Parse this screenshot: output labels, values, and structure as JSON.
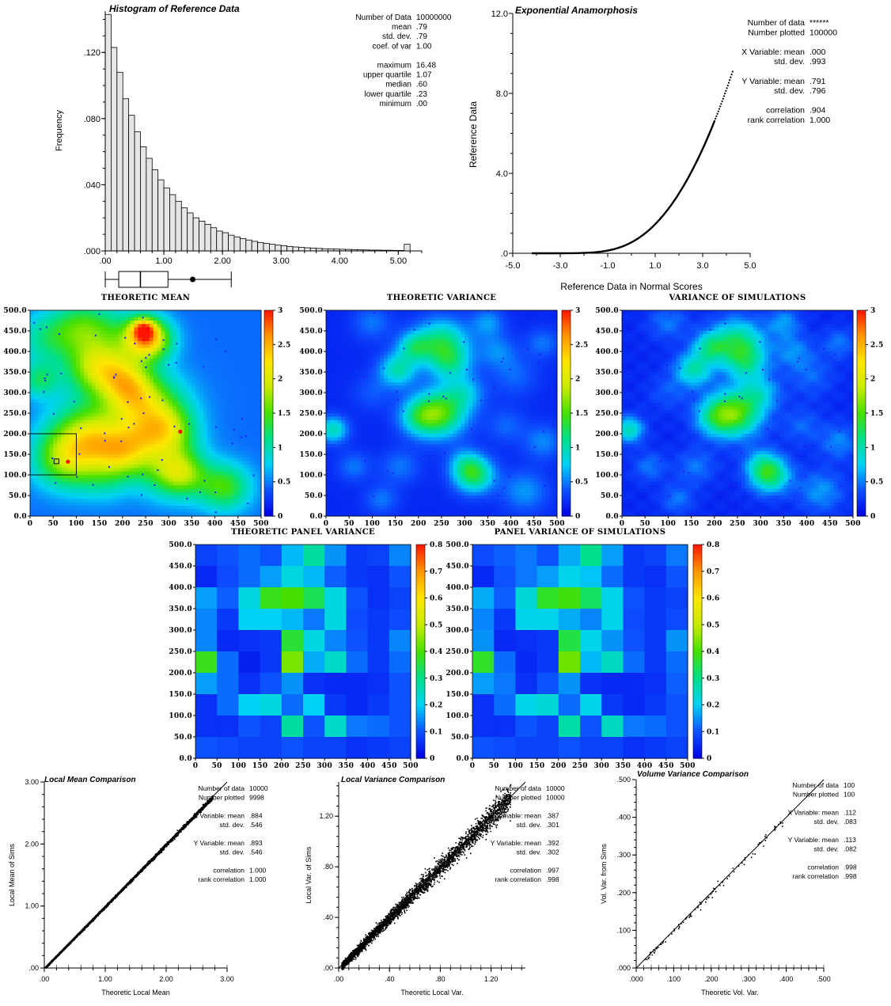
{
  "palette": {
    "stops": [
      "#0000e6",
      "#0d52ff",
      "#00d2f5",
      "#00e08a",
      "#46e000",
      "#c8ec00",
      "#ffe600",
      "#ff9600",
      "#ff1400"
    ],
    "histogram_fill": "#e6e6e6",
    "axis": "#000000",
    "marker_red": "#ff0000",
    "marker_blue": "#1e1eff"
  },
  "chart_data": [
    {
      "id": "histogram",
      "type": "bar",
      "title": "Histogram of Reference Data",
      "xlabel": "",
      "ylabel": "Frequency",
      "xlim": [
        0,
        5.4
      ],
      "ylim": [
        0,
        0.145
      ],
      "bin_width": 0.1,
      "values": [
        0.143,
        0.123,
        0.108,
        0.092,
        0.082,
        0.072,
        0.063,
        0.056,
        0.049,
        0.043,
        0.038,
        0.034,
        0.03,
        0.026,
        0.023,
        0.02,
        0.018,
        0.016,
        0.014,
        0.012,
        0.011,
        0.0095,
        0.0085,
        0.0075,
        0.0066,
        0.0058,
        0.0051,
        0.0045,
        0.004,
        0.0035,
        0.0031,
        0.0027,
        0.0024,
        0.0021,
        0.0019,
        0.0017,
        0.0015,
        0.0013,
        0.0012,
        0.0011,
        0.001,
        0.0009,
        0.0008,
        0.0007,
        0.0006,
        0.0005,
        0.0005,
        0.0004,
        0.0004,
        0.0003,
        0.0003,
        0.004
      ],
      "xticks": [
        0,
        1,
        2,
        3,
        4,
        5
      ],
      "xtick_labels": [
        ".00",
        "1.00",
        "2.00",
        "3.00",
        "4.00",
        "5.00"
      ],
      "yticks": [
        0,
        0.04,
        0.08,
        0.12
      ],
      "ytick_labels": [
        ".000",
        ".040",
        ".080",
        ".120"
      ],
      "boxplot": {
        "min": 0,
        "lower_quartile": 0.23,
        "median": 0.6,
        "upper_quartile": 1.07,
        "whisker_max": 2.15,
        "mean": 0.79
      },
      "stats": [
        [
          "Number of Data",
          "10000000"
        ],
        [
          "mean",
          ".79"
        ],
        [
          "std. dev.",
          ".79"
        ],
        [
          "coef. of var",
          "1.00"
        ],
        [
          "",
          ""
        ],
        [
          "maximum",
          "16.48"
        ],
        [
          "upper quartile",
          "1.07"
        ],
        [
          "median",
          ".60"
        ],
        [
          "lower quartile",
          ".23"
        ],
        [
          "minimum",
          ".00"
        ]
      ]
    },
    {
      "id": "anamorphosis",
      "type": "scatter",
      "title": "Exponential Anamorphosis",
      "xlabel": "Reference Data in Normal Scores",
      "ylabel": "Reference Data",
      "xlim": [
        -5,
        5
      ],
      "ylim": [
        0,
        12
      ],
      "xticks": [
        -5,
        -3,
        -1,
        1,
        3,
        5
      ],
      "xtick_labels": [
        "-5.0",
        "-3.0",
        "-1.0",
        "1.0",
        "3.0",
        "5.0"
      ],
      "yticks": [
        0,
        4,
        8,
        12
      ],
      "ytick_labels": [
        ".0",
        "4.0",
        "8.0",
        "12.0"
      ],
      "curve": "y = -ln(1 - Phi(x)) * 0.791",
      "x_range": [
        -4.2,
        4.3
      ],
      "stats": [
        [
          "Number of data",
          "******"
        ],
        [
          "Number plotted",
          "100000"
        ],
        [
          "",
          ""
        ],
        [
          "X Variable: mean",
          ".000"
        ],
        [
          "std. dev.",
          ".993"
        ],
        [
          "",
          ""
        ],
        [
          "Y Variable: mean",
          ".791"
        ],
        [
          "std. dev.",
          ".796"
        ],
        [
          "",
          ""
        ],
        [
          "correlation",
          ".904"
        ],
        [
          "rank correlation",
          "1.000"
        ]
      ]
    },
    {
      "id": "theoretic-mean",
      "type": "heatmap",
      "title": "THEORETIC MEAN",
      "xlim": [
        0,
        500
      ],
      "ylim": [
        0,
        500
      ],
      "clim": [
        0,
        3
      ],
      "colorbar_ticks": [
        "0",
        "0.5",
        "1",
        "1.5",
        "2",
        "2.5",
        "3"
      ],
      "xtick_labels": [
        "0",
        "50",
        "100",
        "150",
        "200",
        "250",
        "300",
        "350",
        "400",
        "450",
        "500"
      ],
      "ytick_labels": [
        "0.0",
        "50.0",
        "100.0",
        "150.0",
        "200.0",
        "250.0",
        "300.0",
        "350.0",
        "400.0",
        "450.0",
        "500.0"
      ],
      "selection_box": [
        0,
        100,
        100,
        200
      ],
      "red_points": [
        [
          255,
          455
        ],
        [
          82,
          132
        ],
        [
          325,
          205
        ]
      ],
      "black_square": [
        57,
        133
      ]
    },
    {
      "id": "theoretic-variance",
      "type": "heatmap",
      "title": "THEORETIC VARIANCE",
      "xlim": [
        0,
        500
      ],
      "ylim": [
        0,
        500
      ],
      "clim": [
        0,
        3
      ],
      "colorbar_ticks": [
        "0",
        "0.5",
        "1",
        "1.5",
        "2",
        "2.5",
        "3"
      ],
      "xtick_labels": [
        "0",
        "50",
        "100",
        "150",
        "200",
        "250",
        "300",
        "350",
        "400",
        "450",
        "500"
      ],
      "ytick_labels": [
        "0.0",
        "50.0",
        "100.0",
        "150.0",
        "200.0",
        "250.0",
        "300.0",
        "350.0",
        "400.0",
        "450.0",
        "500.0"
      ]
    },
    {
      "id": "variance-of-simulations",
      "type": "heatmap",
      "title": "VARIANCE OF SIMULATIONS",
      "xlim": [
        0,
        500
      ],
      "ylim": [
        0,
        500
      ],
      "clim": [
        0,
        3
      ],
      "colorbar_ticks": [
        "0",
        "0.5",
        "1",
        "1.5",
        "2",
        "2.5",
        "3"
      ],
      "xtick_labels": [
        "0",
        "50",
        "100",
        "150",
        "200",
        "250",
        "300",
        "350",
        "400",
        "450",
        "500"
      ],
      "ytick_labels": [
        "0.0",
        "50.0",
        "100.0",
        "150.0",
        "200.0",
        "250.0",
        "300.0",
        "350.0",
        "400.0",
        "450.0",
        "500.0"
      ]
    },
    {
      "id": "theoretic-panel-variance",
      "type": "heatmap",
      "title": "THEORETIC PANEL VARIANCE",
      "xlim": [
        0,
        500
      ],
      "ylim": [
        0,
        500
      ],
      "clim": [
        0,
        0.8
      ],
      "colorbar_ticks": [
        "0",
        "0.1",
        "0.2",
        "0.3",
        "0.4",
        "0.5",
        "0.6",
        "0.7",
        "0.8"
      ],
      "xtick_labels": [
        "0",
        "50",
        "100",
        "150",
        "200",
        "250",
        "300",
        "350",
        "400",
        "450",
        "500"
      ],
      "ytick_labels": [
        "0.0",
        "50.0",
        "100.0",
        "150.0",
        "200.0",
        "250.0",
        "300.0",
        "350.0",
        "400.0",
        "450.0",
        "500.0"
      ],
      "grid": [
        [
          0.08,
          0.1,
          0.12,
          0.1,
          0.18,
          0.28,
          0.15,
          0.07,
          0.08,
          0.14
        ],
        [
          0.05,
          0.09,
          0.12,
          0.16,
          0.22,
          0.18,
          0.11,
          0.07,
          0.06,
          0.1
        ],
        [
          0.16,
          0.11,
          0.22,
          0.38,
          0.4,
          0.34,
          0.22,
          0.1,
          0.06,
          0.08
        ],
        [
          0.14,
          0.07,
          0.2,
          0.2,
          0.18,
          0.13,
          0.22,
          0.09,
          0.07,
          0.09
        ],
        [
          0.14,
          0.05,
          0.06,
          0.07,
          0.36,
          0.22,
          0.14,
          0.1,
          0.07,
          0.14
        ],
        [
          0.38,
          0.12,
          0.04,
          0.07,
          0.44,
          0.17,
          0.24,
          0.12,
          0.07,
          0.12
        ],
        [
          0.16,
          0.12,
          0.06,
          0.1,
          0.15,
          0.06,
          0.05,
          0.05,
          0.06,
          0.1
        ],
        [
          0.06,
          0.12,
          0.2,
          0.22,
          0.12,
          0.2,
          0.07,
          0.05,
          0.07,
          0.1
        ],
        [
          0.06,
          0.06,
          0.1,
          0.08,
          0.28,
          0.1,
          0.24,
          0.13,
          0.12,
          0.1
        ],
        [
          0.1,
          0.09,
          0.08,
          0.08,
          0.1,
          0.08,
          0.08,
          0.06,
          0.07,
          0.08
        ]
      ]
    },
    {
      "id": "panel-variance-of-simulations",
      "type": "heatmap",
      "title": "PANEL VARIANCE OF SIMULATIONS",
      "xlim": [
        0,
        500
      ],
      "ylim": [
        0,
        500
      ],
      "clim": [
        0,
        0.8
      ],
      "colorbar_ticks": [
        "0",
        "0.1",
        "0.2",
        "0.3",
        "0.4",
        "0.5",
        "0.6",
        "0.7",
        "0.8"
      ],
      "xtick_labels": [
        "0",
        "50",
        "100",
        "150",
        "200",
        "250",
        "300",
        "350",
        "400",
        "450",
        "500"
      ],
      "ytick_labels": [
        "0.0",
        "50.0",
        "100.0",
        "150.0",
        "200.0",
        "250.0",
        "300.0",
        "350.0",
        "400.0",
        "450.0",
        "500.0"
      ],
      "grid": [
        [
          0.09,
          0.11,
          0.13,
          0.1,
          0.17,
          0.3,
          0.16,
          0.07,
          0.08,
          0.13
        ],
        [
          0.05,
          0.1,
          0.13,
          0.16,
          0.21,
          0.19,
          0.12,
          0.07,
          0.06,
          0.1
        ],
        [
          0.17,
          0.11,
          0.23,
          0.37,
          0.39,
          0.33,
          0.21,
          0.1,
          0.07,
          0.08
        ],
        [
          0.14,
          0.07,
          0.21,
          0.21,
          0.17,
          0.14,
          0.21,
          0.09,
          0.07,
          0.09
        ],
        [
          0.15,
          0.05,
          0.06,
          0.07,
          0.35,
          0.21,
          0.15,
          0.1,
          0.07,
          0.15
        ],
        [
          0.37,
          0.12,
          0.05,
          0.07,
          0.43,
          0.18,
          0.25,
          0.12,
          0.07,
          0.12
        ],
        [
          0.16,
          0.13,
          0.06,
          0.1,
          0.15,
          0.06,
          0.05,
          0.05,
          0.06,
          0.11
        ],
        [
          0.06,
          0.12,
          0.21,
          0.23,
          0.12,
          0.21,
          0.07,
          0.05,
          0.07,
          0.1
        ],
        [
          0.06,
          0.06,
          0.1,
          0.08,
          0.27,
          0.1,
          0.25,
          0.13,
          0.12,
          0.1
        ],
        [
          0.1,
          0.09,
          0.08,
          0.08,
          0.1,
          0.08,
          0.08,
          0.06,
          0.07,
          0.08
        ]
      ]
    },
    {
      "id": "local-mean-comparison",
      "type": "scatter",
      "title": "Local Mean Comparison",
      "xlabel": "Theoretic Local Mean",
      "ylabel": "Local Mean of Sims",
      "xlim": [
        0,
        3
      ],
      "ylim": [
        0,
        3
      ],
      "xticks": [
        0,
        1,
        2,
        3
      ],
      "xtick_labels": [
        ".00",
        "1.00",
        "2.00",
        "3.00"
      ],
      "yticks": [
        0,
        1,
        2,
        3
      ],
      "ytick_labels": [
        ".00",
        "1.00",
        "2.00",
        "3.00"
      ],
      "x_range": [
        0.02,
        2.75
      ],
      "spread": 0.012,
      "n_points": 3000,
      "stats": [
        [
          "Number of data",
          "10000"
        ],
        [
          "Number plotted",
          "9998"
        ],
        [
          "",
          ""
        ],
        [
          "X Variable: mean",
          ".884"
        ],
        [
          "std. dev.",
          ".546"
        ],
        [
          "",
          ""
        ],
        [
          "Y Variable: mean",
          ".893"
        ],
        [
          "std. dev.",
          ".546"
        ],
        [
          "",
          ""
        ],
        [
          "correlation",
          "1.000"
        ],
        [
          "rank correlation",
          "1.000"
        ]
      ]
    },
    {
      "id": "local-variance-comparison",
      "type": "scatter",
      "title": "Local Variance Comparison",
      "xlabel": "Theoretic Local Var.",
      "ylabel": "Local Var. of Sims",
      "xlim": [
        0,
        1.47
      ],
      "ylim": [
        0,
        1.47
      ],
      "xticks": [
        0,
        0.4,
        0.8,
        1.2
      ],
      "xtick_labels": [
        ".00",
        ".40",
        ".80",
        "1.20"
      ],
      "yticks": [
        0,
        0.4,
        0.8,
        1.2
      ],
      "ytick_labels": [
        ".00",
        ".40",
        ".80",
        "1.20"
      ],
      "x_range": [
        0.02,
        1.35
      ],
      "spread": 0.035,
      "n_points": 3500,
      "stats": [
        [
          "Number of data",
          "10000"
        ],
        [
          "Number plotted",
          "10000"
        ],
        [
          "",
          ""
        ],
        [
          "X Variable: mean",
          ".387"
        ],
        [
          "std. dev.",
          ".301"
        ],
        [
          "",
          ""
        ],
        [
          "Y Variable: mean",
          ".392"
        ],
        [
          "std. dev.",
          ".302"
        ],
        [
          "",
          ""
        ],
        [
          "correlation",
          ".997"
        ],
        [
          "rank correlation",
          ".998"
        ]
      ]
    },
    {
      "id": "volume-variance-comparison",
      "type": "scatter",
      "title": "Volume Variance Comparison",
      "xlabel": "Theoretic Vol. Var.",
      "ylabel": "Vol. Var. from Sims",
      "xlim": [
        0,
        0.5
      ],
      "ylim": [
        0,
        0.5
      ],
      "xticks": [
        0,
        0.1,
        0.2,
        0.3,
        0.4,
        0.5
      ],
      "xtick_labels": [
        ".000",
        ".100",
        ".200",
        ".300",
        ".400",
        ".500"
      ],
      "yticks": [
        0,
        0.1,
        0.2,
        0.3,
        0.4,
        0.5
      ],
      "ytick_labels": [
        ".000",
        ".100",
        ".200",
        ".300",
        ".400",
        ".500"
      ],
      "x_range": [
        0.02,
        0.39
      ],
      "spread": 0.006,
      "n_points": 100,
      "stats": [
        [
          "Number of data",
          "100"
        ],
        [
          "Number plotted",
          "100"
        ],
        [
          "",
          ""
        ],
        [
          "X Variable: mean",
          ".112"
        ],
        [
          "std. dev.",
          ".083"
        ],
        [
          "",
          ""
        ],
        [
          "Y Variable: mean",
          ".113"
        ],
        [
          "std. dev.",
          ".082"
        ],
        [
          "",
          ""
        ],
        [
          "correlation",
          ".998"
        ],
        [
          "rank correlation",
          ".998"
        ]
      ]
    }
  ]
}
